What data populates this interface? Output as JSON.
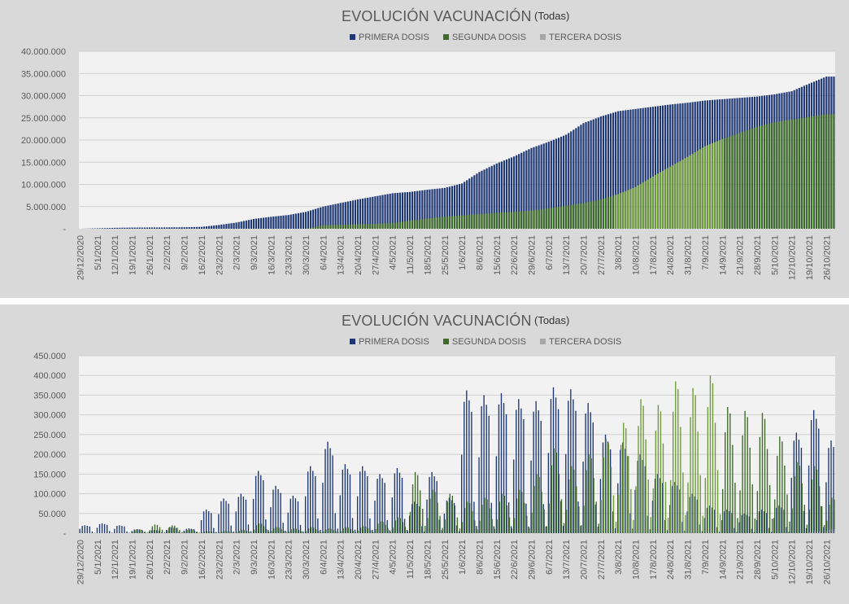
{
  "colors": {
    "primera": "#1f3874",
    "segunda": "#3e6b28",
    "segunda_light": "#6f9a3c",
    "tercera": "#a6a6a6"
  },
  "chart_data": [
    {
      "type": "bar",
      "title": "EVOLUCIÓN VACUNACIÓN",
      "subtitle": "(Todas)",
      "legend": [
        "PRIMERA DOSIS",
        "SEGUNDA DOSIS",
        "TERCERA DOSIS"
      ],
      "legend_position": "top",
      "grid": true,
      "ylim": [
        0,
        40000000
      ],
      "y_ticks": [
        "-",
        "5.000.000",
        "10.000.000",
        "15.000.000",
        "20.000.000",
        "25.000.000",
        "30.000.000",
        "35.000.000",
        "40.000.000"
      ],
      "x_ticks": [
        "29/12/2020",
        "5/1/2021",
        "12/1/2021",
        "19/1/2021",
        "26/1/2021",
        "2/2/2021",
        "9/2/2021",
        "16/2/2021",
        "23/2/2021",
        "2/3/2021",
        "9/3/2021",
        "16/3/2021",
        "23/3/2021",
        "30/3/2021",
        "6/4/2021",
        "13/4/2021",
        "20/4/2021",
        "27/4/2021",
        "4/5/2021",
        "11/5/2021",
        "18/5/2021",
        "25/5/2021",
        "1/6/2021",
        "8/6/2021",
        "15/6/2021",
        "22/6/2021",
        "29/6/2021",
        "6/7/2021",
        "13/7/2021",
        "20/7/2021",
        "27/7/2021",
        "3/8/2021",
        "10/8/2021",
        "17/8/2021",
        "24/8/2021",
        "31/8/2021",
        "7/9/2021",
        "14/9/2021",
        "21/9/2021",
        "28/9/2021",
        "5/10/2021",
        "12/10/2021",
        "19/10/2021",
        "26/10/2021"
      ],
      "series": [
        {
          "name": "PRIMERA DOSIS",
          "weekly_values": [
            0,
            100000,
            200000,
            260000,
            280000,
            300000,
            330000,
            420000,
            850000,
            1400000,
            2200000,
            2700000,
            3100000,
            3800000,
            5000000,
            5800000,
            6600000,
            7300000,
            8000000,
            8300000,
            8800000,
            9200000,
            10200000,
            12800000,
            14700000,
            16300000,
            18200000,
            19600000,
            21200000,
            23800000,
            25300000,
            26500000,
            27000000,
            27500000,
            28000000,
            28400000,
            28900000,
            29200000,
            29500000,
            29800000,
            30300000,
            31000000,
            32700000,
            34300000
          ]
        },
        {
          "name": "SEGUNDA DOSIS",
          "weekly_values": [
            0,
            0,
            0,
            0,
            0,
            0,
            0,
            0,
            0,
            0,
            0,
            0,
            0,
            0,
            800000,
            900000,
            1000000,
            1100000,
            1300000,
            1800000,
            2300000,
            2700000,
            3000000,
            3300000,
            3600000,
            3800000,
            4100000,
            4600000,
            5200000,
            5800000,
            6600000,
            7800000,
            9400000,
            11800000,
            14000000,
            16200000,
            18600000,
            20200000,
            21600000,
            23000000,
            24000000,
            24600000,
            25200000,
            25800000
          ]
        },
        {
          "name": "TERCERA DOSIS",
          "weekly_values": [
            0,
            0,
            0,
            0,
            0,
            0,
            0,
            0,
            0,
            0,
            0,
            0,
            0,
            0,
            0,
            0,
            0,
            0,
            0,
            0,
            0,
            0,
            0,
            0,
            0,
            0,
            0,
            0,
            0,
            0,
            0,
            0,
            0,
            0,
            0,
            0,
            0,
            0,
            0,
            0,
            0,
            0,
            0,
            0
          ]
        }
      ]
    },
    {
      "type": "bar",
      "title": "EVOLUCIÓN VACUNACIÓN",
      "subtitle": "(Todas)",
      "legend": [
        "PRIMERA DOSIS",
        "SEGUNDA DOSIS",
        "TERCERA DOSIS"
      ],
      "legend_position": "top",
      "grid": true,
      "ylim": [
        0,
        450000
      ],
      "y_ticks": [
        "-",
        "50.000",
        "100.000",
        "150.000",
        "200.000",
        "250.000",
        "300.000",
        "350.000",
        "400.000",
        "450.000"
      ],
      "x_ticks": [
        "29/12/2020",
        "5/1/2021",
        "12/1/2021",
        "19/1/2021",
        "26/1/2021",
        "2/2/2021",
        "9/2/2021",
        "16/2/2021",
        "23/2/2021",
        "2/3/2021",
        "9/3/2021",
        "16/3/2021",
        "23/3/2021",
        "30/3/2021",
        "6/4/2021",
        "13/4/2021",
        "20/4/2021",
        "27/4/2021",
        "4/5/2021",
        "11/5/2021",
        "18/5/2021",
        "25/5/2021",
        "1/6/2021",
        "8/6/2021",
        "15/6/2021",
        "22/6/2021",
        "29/6/2021",
        "6/7/2021",
        "13/7/2021",
        "20/7/2021",
        "27/7/2021",
        "3/8/2021",
        "10/8/2021",
        "17/8/2021",
        "24/8/2021",
        "31/8/2021",
        "7/9/2021",
        "14/9/2021",
        "21/9/2021",
        "28/9/2021",
        "5/10/2021",
        "12/10/2021",
        "19/10/2021",
        "26/10/2021"
      ],
      "series": [
        {
          "name": "PRIMERA DOSIS",
          "weekly_peaks": [
            20000,
            25000,
            20000,
            10000,
            8000,
            15000,
            12000,
            60000,
            88000,
            100000,
            158000,
            120000,
            95000,
            170000,
            232000,
            175000,
            170000,
            150000,
            165000,
            80000,
            155000,
            90000,
            362000,
            350000,
            355000,
            340000,
            335000,
            370000,
            365000,
            330000,
            250000,
            230000,
            200000,
            150000,
            130000,
            100000,
            70000,
            60000,
            50000,
            60000,
            70000,
            255000,
            312000,
            235000
          ]
        },
        {
          "name": "SEGUNDA DOSIS",
          "weekly_peaks": [
            0,
            0,
            0,
            10000,
            22000,
            20000,
            10000,
            5000,
            5000,
            8000,
            25000,
            15000,
            12000,
            15000,
            12000,
            15000,
            18000,
            30000,
            40000,
            155000,
            110000,
            100000,
            80000,
            90000,
            100000,
            110000,
            150000,
            215000,
            170000,
            200000,
            240000,
            280000,
            340000,
            325000,
            385000,
            368000,
            400000,
            320000,
            310000,
            305000,
            245000,
            180000,
            170000,
            90000
          ]
        },
        {
          "name": "TERCERA DOSIS",
          "weekly_peaks": [
            0,
            0,
            0,
            0,
            0,
            0,
            0,
            0,
            0,
            0,
            0,
            0,
            0,
            0,
            0,
            0,
            0,
            0,
            0,
            0,
            0,
            0,
            0,
            0,
            0,
            0,
            0,
            0,
            0,
            0,
            0,
            0,
            0,
            0,
            0,
            0,
            0,
            0,
            0,
            0,
            0,
            0,
            5000,
            10000
          ]
        }
      ]
    }
  ]
}
